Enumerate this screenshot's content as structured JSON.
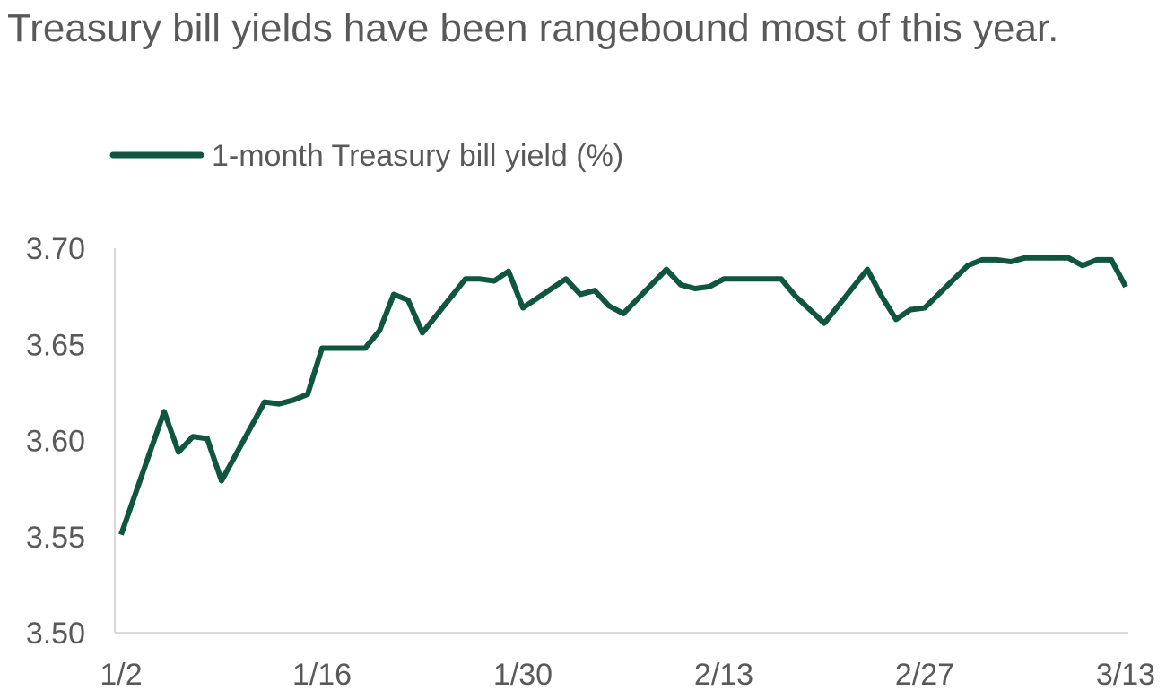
{
  "chart_data": {
    "type": "line",
    "title": "Treasury bill yields have been rangebound most of this year.",
    "x": [
      "1/2",
      "1/5",
      "1/6",
      "1/7",
      "1/8",
      "1/9",
      "1/12",
      "1/13",
      "1/14",
      "1/15",
      "1/16",
      "1/19",
      "1/20",
      "1/21",
      "1/22",
      "1/23",
      "1/26",
      "1/27",
      "1/28",
      "1/29",
      "1/30",
      "2/2",
      "2/3",
      "2/4",
      "2/5",
      "2/6",
      "2/9",
      "2/10",
      "2/11",
      "2/12",
      "2/13",
      "2/16",
      "2/17",
      "2/18",
      "2/19",
      "2/20",
      "2/23",
      "2/24",
      "2/25",
      "2/26",
      "2/27",
      "3/2",
      "3/3",
      "3/4",
      "3/5",
      "3/6",
      "3/9",
      "3/10",
      "3/11",
      "3/12",
      "3/13"
    ],
    "series": [
      {
        "name": "1-month Treasury bill yield (%)",
        "color": "#0f5540",
        "values": [
          3.551,
          3.615,
          3.594,
          3.602,
          3.601,
          3.579,
          3.62,
          3.619,
          3.621,
          3.624,
          3.648,
          3.648,
          3.657,
          3.676,
          3.673,
          3.656,
          3.684,
          3.684,
          3.683,
          3.688,
          3.669,
          3.684,
          3.676,
          3.678,
          3.67,
          3.666,
          3.689,
          3.681,
          3.679,
          3.68,
          3.684,
          3.684,
          3.684,
          3.675,
          3.668,
          3.661,
          3.689,
          3.675,
          3.663,
          3.668,
          3.669,
          3.691,
          3.694,
          3.694,
          3.693,
          3.695,
          3.695,
          3.691,
          3.694,
          3.694,
          3.68
        ]
      }
    ],
    "xticks": [
      "1/2",
      "1/16",
      "1/30",
      "2/13",
      "2/27",
      "3/13"
    ],
    "ylim": [
      3.5,
      3.7
    ],
    "yticks": [
      {
        "value": 3.5,
        "label": "3.50"
      },
      3.55,
      {
        "value": 3.6,
        "label": "3.60"
      },
      3.65,
      {
        "value": 3.7,
        "label": "3.70"
      }
    ],
    "grid": false,
    "legend": "top-left"
  }
}
